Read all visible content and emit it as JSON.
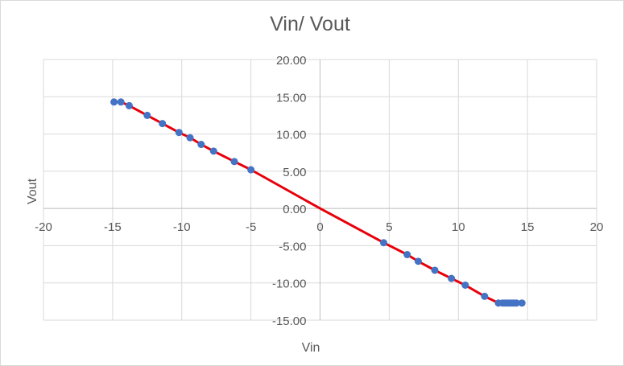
{
  "chart_data": {
    "type": "scatter",
    "title": "Vin/ Vout",
    "xlabel": "Vin",
    "ylabel": "Vout",
    "xlim": [
      -20,
      20
    ],
    "ylim": [
      -15,
      20
    ],
    "x_ticks": [
      -20,
      -15,
      -10,
      -5,
      0,
      5,
      10,
      15,
      20
    ],
    "x_tick_labels": [
      "-20",
      "-15",
      "-10",
      "-5",
      "0",
      "5",
      "10",
      "15",
      "20"
    ],
    "y_ticks": [
      20,
      15,
      10,
      5,
      0,
      -5,
      -10,
      -15
    ],
    "y_tick_labels": [
      "20.00",
      "15.00",
      "10.00",
      "5.00",
      "0.00",
      "-5.00",
      "-10.00",
      "-15.00"
    ],
    "grid": true,
    "legend": "none",
    "colors": {
      "points": "#4472c4",
      "line": "#e8000b",
      "grid": "#d9d9d9",
      "axis": "#bfbfbf"
    },
    "series": [
      {
        "marker": "circle",
        "x": [
          -14.9,
          -14.4,
          -13.8,
          -12.5,
          -11.4,
          -10.2,
          -9.4,
          -8.6,
          -7.7,
          -6.2,
          -5.0,
          4.6,
          6.3,
          7.1,
          8.3,
          9.5,
          10.5,
          11.9,
          12.9,
          13.2,
          13.4,
          13.6,
          13.8,
          14.0,
          14.2,
          14.6
        ],
        "y": [
          14.3,
          14.3,
          13.8,
          12.5,
          11.4,
          10.2,
          9.5,
          8.6,
          7.7,
          6.3,
          5.2,
          -4.6,
          -6.2,
          -7.1,
          -8.3,
          -9.4,
          -10.3,
          -11.8,
          -12.7,
          -12.7,
          -12.7,
          -12.7,
          -12.7,
          -12.7,
          -12.7,
          -12.7
        ]
      },
      {
        "marker": "none",
        "line": true,
        "x": [
          -14.9,
          -14.4,
          -13.8,
          -12.5,
          -11.4,
          -10.2,
          -9.4,
          -8.6,
          -7.7,
          -6.2,
          -5.0,
          0,
          4.6,
          6.3,
          7.1,
          8.3,
          9.5,
          10.5,
          11.9,
          12.9,
          14.6
        ],
        "y": [
          14.3,
          14.3,
          13.8,
          12.5,
          11.4,
          10.2,
          9.5,
          8.6,
          7.7,
          6.3,
          5.2,
          0.0,
          -4.6,
          -6.2,
          -7.1,
          -8.3,
          -9.4,
          -10.3,
          -11.8,
          -12.7,
          -12.7
        ]
      }
    ]
  }
}
